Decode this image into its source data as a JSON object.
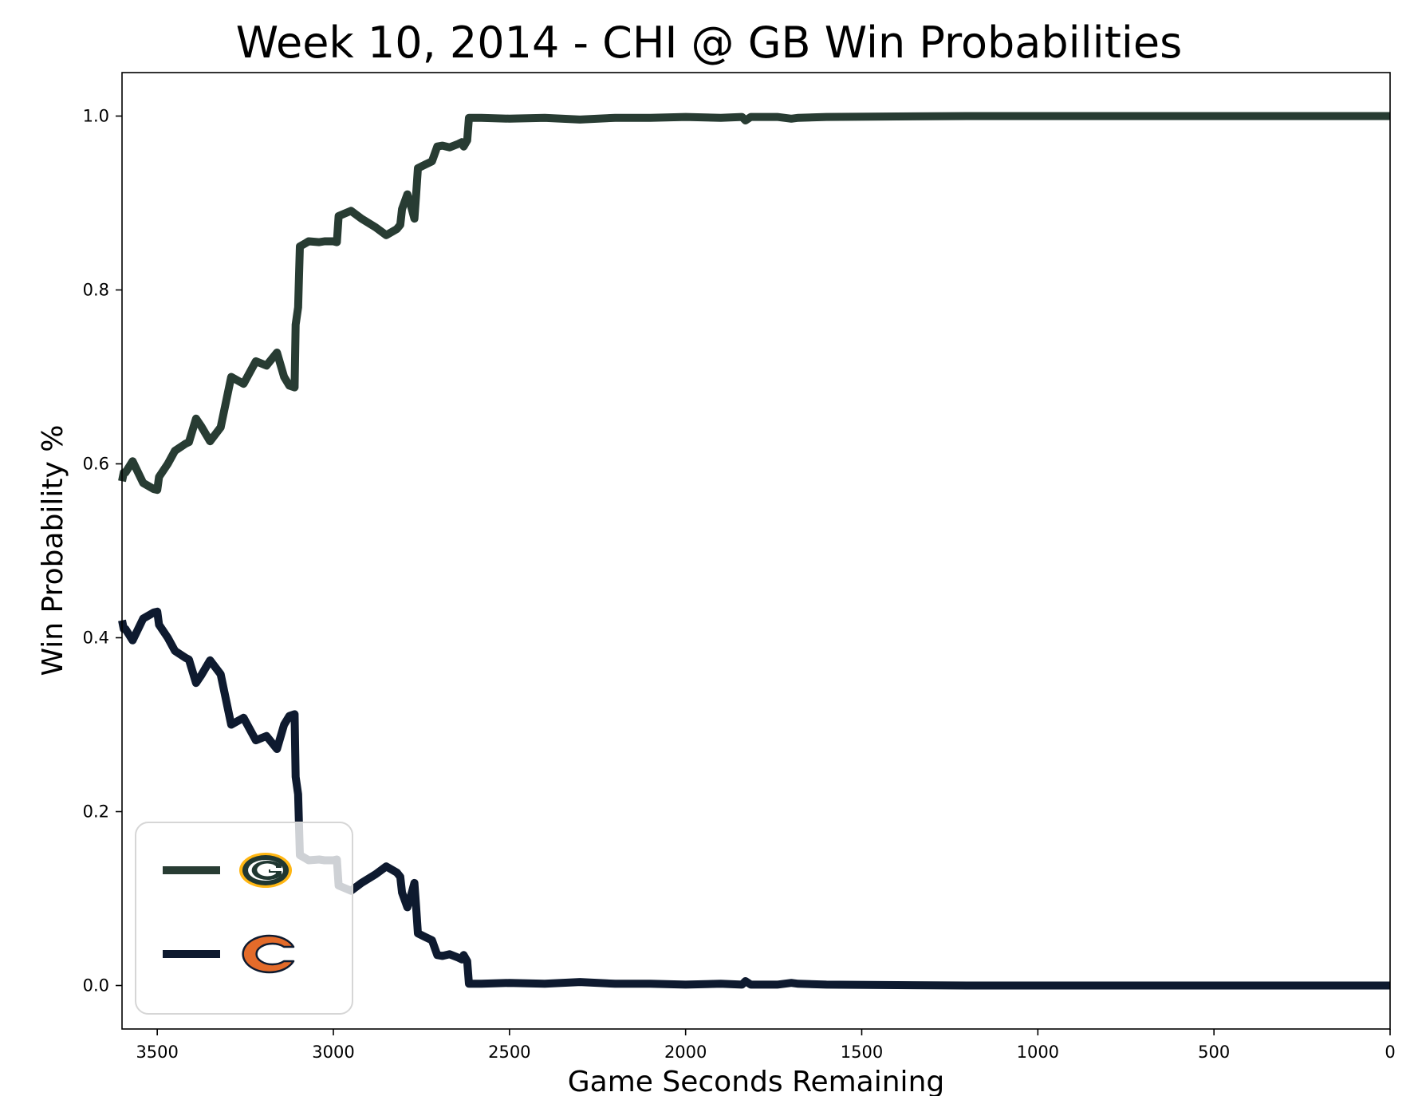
{
  "chart_data": {
    "type": "line",
    "title": "Week 10, 2014 - CHI @ GB Win Probabilities",
    "xlabel": "Game Seconds Remaining",
    "ylabel": "Win Probability %",
    "xlim": [
      3600,
      0
    ],
    "ylim": [
      -0.05,
      1.05
    ],
    "x_ticks": [
      3500,
      3000,
      2500,
      2000,
      1500,
      1000,
      500,
      0
    ],
    "y_ticks": [
      0.0,
      0.2,
      0.4,
      0.6,
      0.8,
      1.0
    ],
    "x_tick_labels": [
      "3500",
      "3000",
      "2500",
      "2000",
      "1500",
      "1000",
      "500",
      "0"
    ],
    "y_tick_labels": [
      "0.0",
      "0.2",
      "0.4",
      "0.6",
      "0.8",
      "1.0"
    ],
    "grid": false,
    "legend_position": "lower-left",
    "series": [
      {
        "team": "GB",
        "color": "#283c33",
        "legend_icon": "packers-g-logo-icon",
        "points": [
          [
            3600,
            0.58
          ],
          [
            3595,
            0.59
          ],
          [
            3590,
            0.59
          ],
          [
            3570,
            0.603
          ],
          [
            3540,
            0.578
          ],
          [
            3510,
            0.571
          ],
          [
            3500,
            0.57
          ],
          [
            3495,
            0.585
          ],
          [
            3470,
            0.6
          ],
          [
            3450,
            0.615
          ],
          [
            3420,
            0.623
          ],
          [
            3410,
            0.625
          ],
          [
            3390,
            0.652
          ],
          [
            3375,
            0.643
          ],
          [
            3350,
            0.626
          ],
          [
            3320,
            0.642
          ],
          [
            3290,
            0.7
          ],
          [
            3255,
            0.692
          ],
          [
            3220,
            0.718
          ],
          [
            3190,
            0.713
          ],
          [
            3160,
            0.728
          ],
          [
            3140,
            0.7
          ],
          [
            3125,
            0.69
          ],
          [
            3110,
            0.688
          ],
          [
            3107,
            0.76
          ],
          [
            3100,
            0.78
          ],
          [
            3095,
            0.85
          ],
          [
            3070,
            0.856
          ],
          [
            3040,
            0.855
          ],
          [
            3025,
            0.856
          ],
          [
            3000,
            0.856
          ],
          [
            2990,
            0.855
          ],
          [
            2985,
            0.885
          ],
          [
            2950,
            0.891
          ],
          [
            2920,
            0.882
          ],
          [
            2880,
            0.872
          ],
          [
            2850,
            0.863
          ],
          [
            2820,
            0.87
          ],
          [
            2810,
            0.875
          ],
          [
            2805,
            0.893
          ],
          [
            2790,
            0.91
          ],
          [
            2780,
            0.897
          ],
          [
            2770,
            0.882
          ],
          [
            2765,
            0.91
          ],
          [
            2760,
            0.94
          ],
          [
            2740,
            0.944
          ],
          [
            2720,
            0.948
          ],
          [
            2705,
            0.965
          ],
          [
            2690,
            0.966
          ],
          [
            2670,
            0.964
          ],
          [
            2645,
            0.968
          ],
          [
            2635,
            0.97
          ],
          [
            2630,
            0.965
          ],
          [
            2620,
            0.972
          ],
          [
            2615,
            0.998
          ],
          [
            2580,
            0.998
          ],
          [
            2500,
            0.997
          ],
          [
            2400,
            0.998
          ],
          [
            2300,
            0.996
          ],
          [
            2200,
            0.998
          ],
          [
            2100,
            0.998
          ],
          [
            2000,
            0.999
          ],
          [
            1900,
            0.998
          ],
          [
            1840,
            0.999
          ],
          [
            1830,
            0.995
          ],
          [
            1815,
            0.999
          ],
          [
            1740,
            0.999
          ],
          [
            1700,
            0.997
          ],
          [
            1680,
            0.998
          ],
          [
            1600,
            0.999
          ],
          [
            1400,
            0.9995
          ],
          [
            1200,
            1.0
          ],
          [
            1000,
            1.0
          ],
          [
            500,
            1.0
          ],
          [
            0,
            1.0
          ]
        ]
      },
      {
        "team": "CHI",
        "color": "#0e1a2f",
        "legend_icon": "bears-c-logo-icon",
        "points": [
          [
            3600,
            0.42
          ],
          [
            3595,
            0.41
          ],
          [
            3590,
            0.41
          ],
          [
            3570,
            0.397
          ],
          [
            3540,
            0.422
          ],
          [
            3510,
            0.429
          ],
          [
            3500,
            0.43
          ],
          [
            3495,
            0.415
          ],
          [
            3470,
            0.4
          ],
          [
            3450,
            0.385
          ],
          [
            3420,
            0.377
          ],
          [
            3410,
            0.375
          ],
          [
            3390,
            0.348
          ],
          [
            3375,
            0.357
          ],
          [
            3350,
            0.374
          ],
          [
            3320,
            0.358
          ],
          [
            3290,
            0.3
          ],
          [
            3255,
            0.308
          ],
          [
            3220,
            0.282
          ],
          [
            3190,
            0.287
          ],
          [
            3160,
            0.272
          ],
          [
            3140,
            0.3
          ],
          [
            3125,
            0.31
          ],
          [
            3110,
            0.312
          ],
          [
            3107,
            0.24
          ],
          [
            3100,
            0.22
          ],
          [
            3095,
            0.15
          ],
          [
            3070,
            0.144
          ],
          [
            3040,
            0.145
          ],
          [
            3025,
            0.144
          ],
          [
            3000,
            0.144
          ],
          [
            2990,
            0.145
          ],
          [
            2985,
            0.115
          ],
          [
            2950,
            0.109
          ],
          [
            2920,
            0.118
          ],
          [
            2880,
            0.128
          ],
          [
            2850,
            0.137
          ],
          [
            2820,
            0.13
          ],
          [
            2810,
            0.125
          ],
          [
            2805,
            0.107
          ],
          [
            2790,
            0.09
          ],
          [
            2780,
            0.103
          ],
          [
            2770,
            0.118
          ],
          [
            2765,
            0.09
          ],
          [
            2760,
            0.06
          ],
          [
            2740,
            0.056
          ],
          [
            2720,
            0.052
          ],
          [
            2705,
            0.035
          ],
          [
            2690,
            0.034
          ],
          [
            2670,
            0.036
          ],
          [
            2645,
            0.032
          ],
          [
            2635,
            0.03
          ],
          [
            2630,
            0.035
          ],
          [
            2620,
            0.028
          ],
          [
            2615,
            0.002
          ],
          [
            2580,
            0.002
          ],
          [
            2500,
            0.003
          ],
          [
            2400,
            0.002
          ],
          [
            2300,
            0.004
          ],
          [
            2200,
            0.002
          ],
          [
            2100,
            0.002
          ],
          [
            2000,
            0.001
          ],
          [
            1900,
            0.002
          ],
          [
            1840,
            0.001
          ],
          [
            1830,
            0.005
          ],
          [
            1815,
            0.001
          ],
          [
            1740,
            0.001
          ],
          [
            1700,
            0.003
          ],
          [
            1680,
            0.002
          ],
          [
            1600,
            0.001
          ],
          [
            1400,
            0.0005
          ],
          [
            1200,
            0.0
          ],
          [
            1000,
            0.0
          ],
          [
            500,
            0.0
          ],
          [
            0,
            0.0
          ]
        ]
      }
    ]
  }
}
